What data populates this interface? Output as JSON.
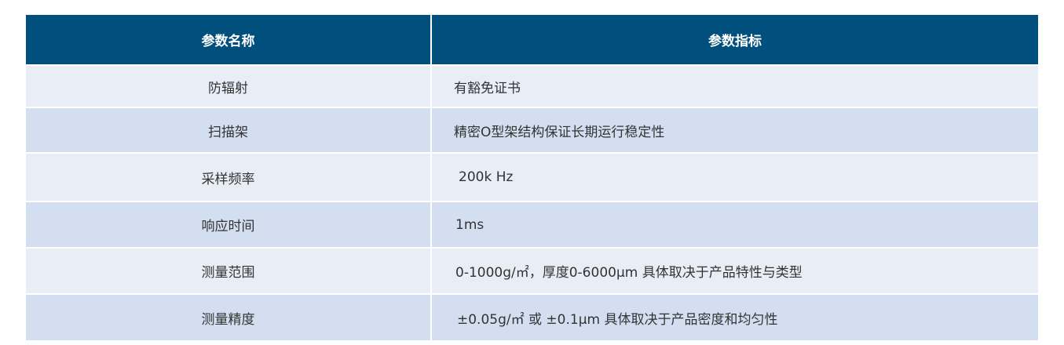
{
  "header": {
    "col1": "参数名称",
    "col2": "参数指标"
  },
  "rows": [
    {
      "name": "防辐射",
      "value": "有豁免证书"
    },
    {
      "name": "扫描架",
      "value": "精密O型架结构保证长期运行稳定性"
    },
    {
      "name": "采样频率",
      "value": "200k Hz"
    },
    {
      "name": "响应时间",
      "value": "1ms"
    },
    {
      "name": "测量范围",
      "value": "0-1000g/㎡，厚度0-6000μm 具体取决于产品特性与类型"
    },
    {
      "name": "测量精度",
      "value": "±0.05g/㎡ 或 ±0.1μm 具体取决于产品密度和均匀性"
    }
  ],
  "colors": {
    "header_bg": "#004f7c",
    "row_light": "#e8edf6",
    "row_dark": "#d3dff0"
  }
}
